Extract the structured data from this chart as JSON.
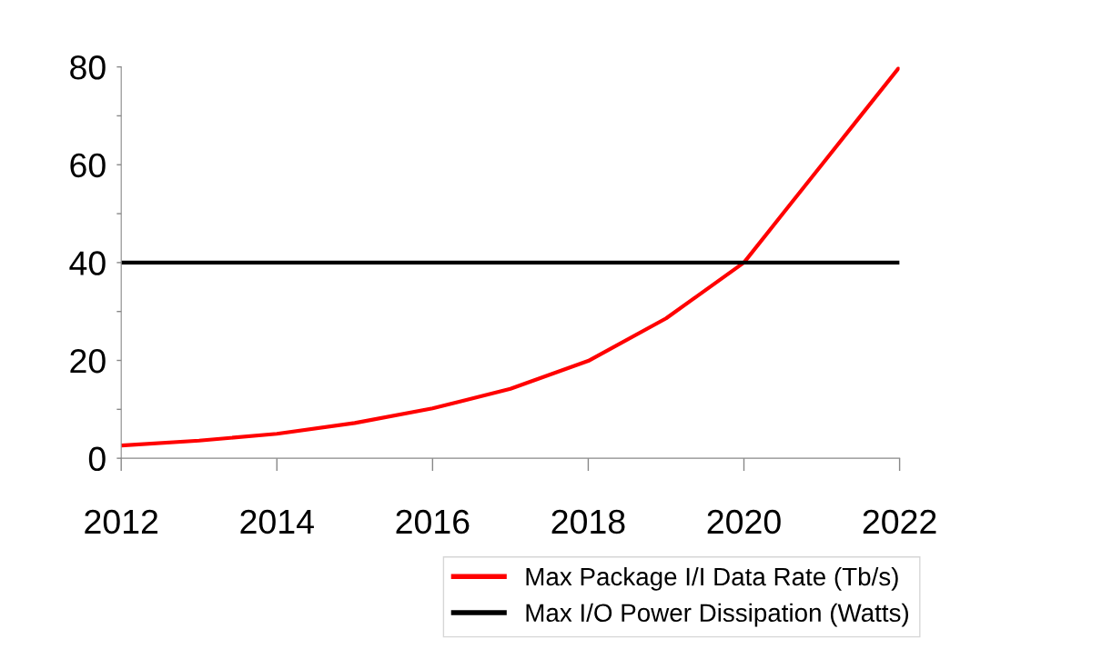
{
  "chart_data": {
    "type": "line",
    "xlim": [
      2012,
      2022
    ],
    "xticks": [
      2012,
      2014,
      2016,
      2018,
      2020,
      2022
    ],
    "ylim": [
      0,
      80
    ],
    "yticks": [
      0,
      {
        "value": 10,
        "label": null
      },
      20,
      {
        "value": 30,
        "label": null
      },
      40,
      {
        "value": 50,
        "label": null
      },
      60,
      {
        "value": 70,
        "label": null
      },
      80
    ],
    "series": [
      {
        "name": "Max Package I/I Data Rate (Tb/s)",
        "color": "#ff0000",
        "x": [
          2012,
          2013,
          2014,
          2015,
          2016,
          2017,
          2018,
          2019,
          2020,
          2020.5,
          2021,
          2021.5,
          2022
        ],
        "values": [
          2.6,
          3.6,
          5,
          7.2,
          10.2,
          14.2,
          19.9,
          28.6,
          40,
          50,
          60,
          70,
          80
        ]
      },
      {
        "name": "Max I/O Power Dissipation (Watts)",
        "color": "#000000",
        "x": [
          2012,
          2022
        ],
        "values": [
          40,
          40
        ]
      }
    ],
    "legend": "bottom",
    "grid": false,
    "marker": "none",
    "line_style": "solid"
  }
}
